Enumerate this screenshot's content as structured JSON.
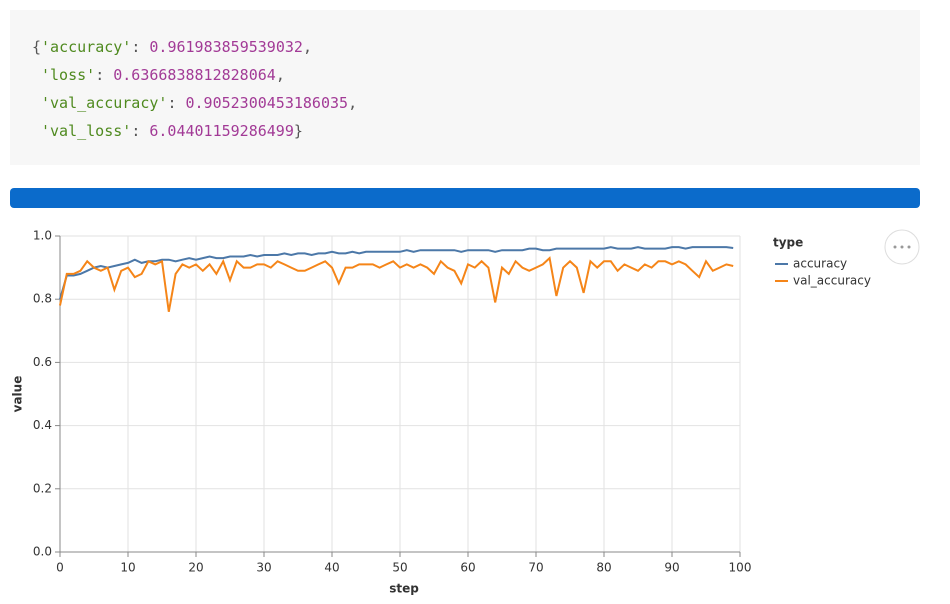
{
  "output": {
    "lines": [
      [
        "{",
        "'accuracy'",
        ": ",
        "0.961983859539032",
        ","
      ],
      [
        "'loss'",
        ": ",
        "0.6366838812828064",
        ","
      ],
      [
        "'val_accuracy'",
        ": ",
        "0.9052300453186035",
        ","
      ],
      [
        "'val_loss'",
        ": ",
        "6.04401159286499",
        "}"
      ]
    ]
  },
  "chart_data": {
    "type": "line",
    "xlabel": "step",
    "ylabel": "value",
    "legend_title": "type",
    "legend": "right",
    "grid": true,
    "xlim": [
      0,
      100
    ],
    "xticks": [
      0,
      10,
      20,
      30,
      40,
      50,
      60,
      70,
      80,
      90,
      100
    ],
    "ylim": [
      0,
      1
    ],
    "yticks": [
      {
        "value": 0,
        "label": "0.0"
      },
      0.2,
      0.4,
      0.6,
      0.8,
      {
        "value": 1,
        "label": "1.0"
      }
    ],
    "x": [
      0,
      1,
      2,
      3,
      4,
      5,
      6,
      7,
      8,
      9,
      10,
      11,
      12,
      13,
      14,
      15,
      16,
      17,
      18,
      19,
      20,
      21,
      22,
      23,
      24,
      25,
      26,
      27,
      28,
      29,
      30,
      31,
      32,
      33,
      34,
      35,
      36,
      37,
      38,
      39,
      40,
      41,
      42,
      43,
      44,
      45,
      46,
      47,
      48,
      49,
      50,
      51,
      52,
      53,
      54,
      55,
      56,
      57,
      58,
      59,
      60,
      61,
      62,
      63,
      64,
      65,
      66,
      67,
      68,
      69,
      70,
      71,
      72,
      73,
      74,
      75,
      76,
      77,
      78,
      79,
      80,
      81,
      82,
      83,
      84,
      85,
      86,
      87,
      88,
      89,
      90,
      91,
      92,
      93,
      94,
      95,
      96,
      97,
      98,
      99
    ],
    "series": [
      {
        "name": "accuracy",
        "color": "#4c78a8",
        "values": [
          0.8,
          0.875,
          0.875,
          0.88,
          0.89,
          0.9,
          0.905,
          0.9,
          0.905,
          0.91,
          0.915,
          0.925,
          0.915,
          0.92,
          0.92,
          0.925,
          0.925,
          0.92,
          0.925,
          0.93,
          0.925,
          0.93,
          0.935,
          0.93,
          0.93,
          0.935,
          0.935,
          0.935,
          0.94,
          0.935,
          0.94,
          0.94,
          0.94,
          0.945,
          0.94,
          0.945,
          0.945,
          0.94,
          0.945,
          0.945,
          0.95,
          0.945,
          0.945,
          0.95,
          0.945,
          0.95,
          0.95,
          0.95,
          0.95,
          0.95,
          0.95,
          0.955,
          0.95,
          0.955,
          0.955,
          0.955,
          0.955,
          0.955,
          0.955,
          0.95,
          0.955,
          0.955,
          0.955,
          0.955,
          0.95,
          0.955,
          0.955,
          0.955,
          0.955,
          0.96,
          0.96,
          0.955,
          0.955,
          0.96,
          0.96,
          0.96,
          0.96,
          0.96,
          0.96,
          0.96,
          0.96,
          0.965,
          0.96,
          0.96,
          0.96,
          0.965,
          0.96,
          0.96,
          0.96,
          0.96,
          0.965,
          0.965,
          0.96,
          0.965,
          0.965,
          0.965,
          0.965,
          0.965,
          0.965,
          0.962
        ]
      },
      {
        "name": "val_accuracy",
        "color": "#f58518",
        "values": [
          0.78,
          0.88,
          0.88,
          0.89,
          0.92,
          0.9,
          0.89,
          0.9,
          0.83,
          0.89,
          0.9,
          0.87,
          0.88,
          0.92,
          0.91,
          0.92,
          0.76,
          0.88,
          0.91,
          0.9,
          0.91,
          0.89,
          0.91,
          0.88,
          0.92,
          0.86,
          0.92,
          0.9,
          0.9,
          0.91,
          0.91,
          0.9,
          0.92,
          0.91,
          0.9,
          0.89,
          0.89,
          0.9,
          0.91,
          0.92,
          0.9,
          0.85,
          0.9,
          0.9,
          0.91,
          0.91,
          0.91,
          0.9,
          0.91,
          0.92,
          0.9,
          0.91,
          0.9,
          0.91,
          0.9,
          0.88,
          0.92,
          0.9,
          0.89,
          0.85,
          0.91,
          0.9,
          0.92,
          0.9,
          0.79,
          0.9,
          0.88,
          0.92,
          0.9,
          0.89,
          0.9,
          0.91,
          0.93,
          0.81,
          0.9,
          0.92,
          0.9,
          0.82,
          0.92,
          0.9,
          0.92,
          0.92,
          0.89,
          0.91,
          0.9,
          0.89,
          0.91,
          0.9,
          0.92,
          0.92,
          0.91,
          0.92,
          0.91,
          0.89,
          0.87,
          0.92,
          0.89,
          0.9,
          0.91,
          0.905
        ]
      }
    ]
  }
}
